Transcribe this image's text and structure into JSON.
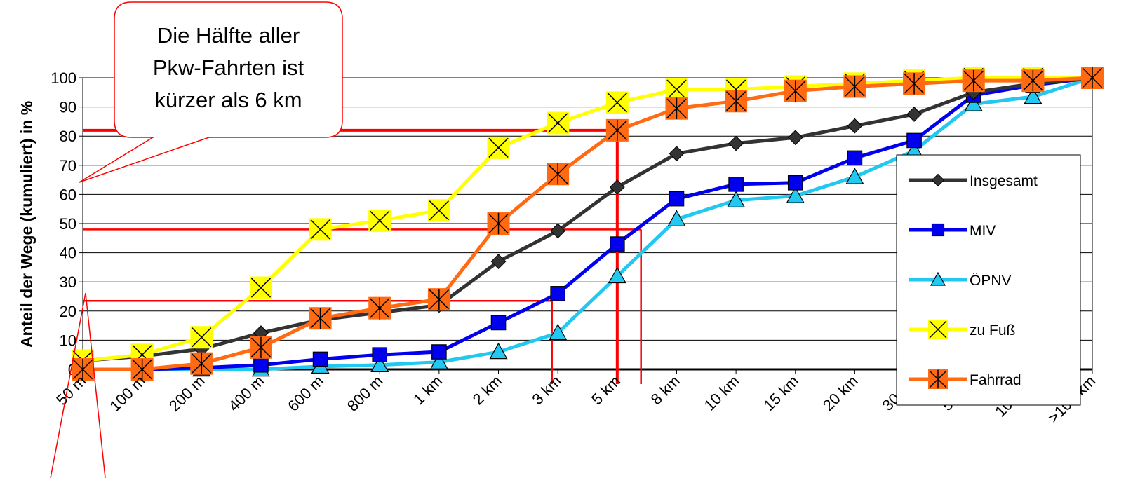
{
  "chart_data": {
    "type": "line",
    "ylabel": "Anteil der Wege (kumuliert) in %",
    "xlabel": "",
    "ylim": [
      0,
      100
    ],
    "yticks": [
      0,
      10,
      20,
      30,
      40,
      50,
      60,
      70,
      80,
      90,
      100
    ],
    "grid": true,
    "legend_position": "right",
    "categories": [
      "50 m",
      "100 m",
      "200 m",
      "400 m",
      "600 m",
      "800 m",
      "1 km",
      "2 km",
      "3 km",
      "5 km",
      "8 km",
      "10 km",
      "15 km",
      "20 km",
      "30 km",
      "50 km",
      "100 km",
      ">100 km"
    ],
    "series": [
      {
        "name": "Insgesamt",
        "color": "#333333",
        "marker": "diamond",
        "values": [
          3,
          4.5,
          7,
          12.5,
          17,
          19.5,
          22,
          37,
          47.5,
          62.5,
          74,
          77.5,
          79.5,
          83.5,
          87.5,
          95,
          98,
          100
        ]
      },
      {
        "name": "MIV",
        "color": "#0000ee",
        "marker": "square",
        "values": [
          0,
          0,
          0.5,
          1.5,
          3.5,
          5,
          6,
          16,
          26,
          43,
          58.5,
          63.5,
          64,
          72.5,
          78.5,
          94,
          97.5,
          100
        ]
      },
      {
        "name": "ÖPNV",
        "color": "#22c8f0",
        "marker": "triangle",
        "values": [
          0,
          0,
          0,
          0,
          1,
          1.5,
          2.5,
          6,
          12.5,
          32,
          51.5,
          58,
          59.5,
          66,
          75,
          91,
          93.5,
          100
        ]
      },
      {
        "name": "zu Fuß",
        "color": "#ffff00",
        "marker": "x",
        "values": [
          3,
          5,
          11,
          28,
          48,
          51,
          54.5,
          76,
          84.5,
          91.5,
          96,
          96,
          97,
          98,
          99,
          100,
          100,
          100
        ]
      },
      {
        "name": "Fahrrad",
        "color": "#ff6a13",
        "marker": "star",
        "values": [
          0,
          0,
          2,
          7.5,
          17.5,
          21,
          24,
          50,
          67,
          82,
          89.5,
          92,
          95.5,
          97,
          98,
          99,
          99,
          100
        ]
      }
    ],
    "reference_lines": [
      {
        "y": 82,
        "x_category_end": "5 km",
        "color": "#ff0000"
      },
      {
        "y": 48,
        "x_category_end": "5 km",
        "color": "#ff0000"
      },
      {
        "y": 23.5,
        "x_category_end": "3 km",
        "color": "#ff0000"
      }
    ],
    "annotation": "Die Hälfte aller Pkw-Fahrten ist kürzer als 6 km"
  },
  "callout": {
    "lines": [
      "Die Hälfte aller",
      "Pkw-Fahrten ist",
      "kürzer als 6 km"
    ],
    "border_color": "#ff0000"
  }
}
